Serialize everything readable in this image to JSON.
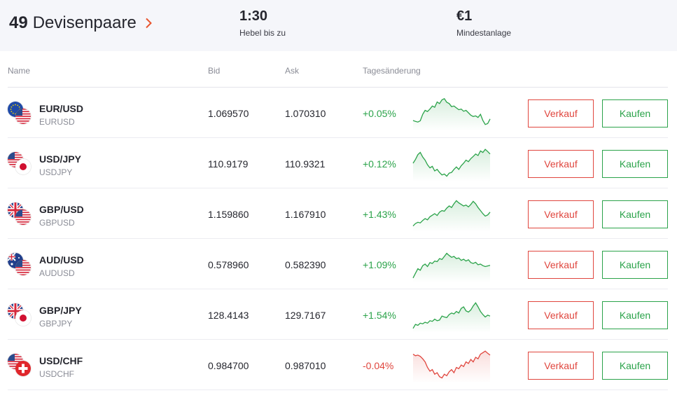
{
  "header": {
    "pairs_count": "49",
    "pairs_title": "Devisenpaare",
    "leverage_value": "1:30",
    "leverage_label": "Hebel bis zu",
    "min_deposit_value": "€1",
    "min_deposit_label": "Mindestanlage"
  },
  "columns": {
    "name": "Name",
    "bid": "Bid",
    "ask": "Ask",
    "change": "Tagesänderung"
  },
  "buttons": {
    "sell": "Verkauf",
    "buy": "Kaufen"
  },
  "colors": {
    "up": "#2ba34a",
    "down": "#e0463e",
    "accent": "#e8562f"
  },
  "rows": [
    {
      "pair": "EUR/USD",
      "symbol": "EURUSD",
      "bid": "1.069570",
      "ask": "1.070310",
      "change": "+0.05%",
      "direction": "up",
      "flags": [
        "eu-flag-icon",
        "us-flag-icon"
      ],
      "spark": [
        0.25,
        0.22,
        0.2,
        0.24,
        0.45,
        0.58,
        0.54,
        0.62,
        0.72,
        0.68,
        0.85,
        0.8,
        0.92,
        0.96,
        0.84,
        0.8,
        0.7,
        0.72,
        0.66,
        0.6,
        0.62,
        0.55,
        0.58,
        0.5,
        0.42,
        0.38,
        0.4,
        0.35,
        0.45,
        0.25,
        0.12,
        0.15,
        0.3
      ]
    },
    {
      "pair": "USD/JPY",
      "symbol": "USDJPY",
      "bid": "110.9179",
      "ask": "110.9321",
      "change": "+0.12%",
      "direction": "up",
      "flags": [
        "us-flag-icon",
        "jp-flag-icon"
      ],
      "spark": [
        0.5,
        0.62,
        0.78,
        0.85,
        0.7,
        0.6,
        0.45,
        0.35,
        0.4,
        0.25,
        0.3,
        0.2,
        0.12,
        0.15,
        0.08,
        0.18,
        0.2,
        0.3,
        0.38,
        0.3,
        0.42,
        0.5,
        0.6,
        0.55,
        0.65,
        0.72,
        0.8,
        0.75,
        0.9,
        0.85,
        0.95,
        0.88,
        0.8
      ]
    },
    {
      "pair": "GBP/USD",
      "symbol": "GBPUSD",
      "bid": "1.159860",
      "ask": "1.167910",
      "change": "+1.43%",
      "direction": "up",
      "flags": [
        "gb-flag-icon",
        "us-flag-icon"
      ],
      "spark": [
        0.1,
        0.18,
        0.22,
        0.2,
        0.28,
        0.34,
        0.3,
        0.4,
        0.45,
        0.5,
        0.44,
        0.55,
        0.6,
        0.58,
        0.68,
        0.75,
        0.7,
        0.82,
        0.92,
        0.85,
        0.8,
        0.75,
        0.78,
        0.72,
        0.8,
        0.9,
        0.82,
        0.7,
        0.6,
        0.5,
        0.42,
        0.46,
        0.55
      ]
    },
    {
      "pair": "AUD/USD",
      "symbol": "AUDUSD",
      "bid": "0.578960",
      "ask": "0.582390",
      "change": "+1.09%",
      "direction": "up",
      "flags": [
        "au-flag-icon",
        "us-flag-icon"
      ],
      "spark": [
        0.05,
        0.2,
        0.35,
        0.3,
        0.45,
        0.5,
        0.42,
        0.55,
        0.52,
        0.6,
        0.58,
        0.68,
        0.65,
        0.75,
        0.85,
        0.78,
        0.72,
        0.75,
        0.68,
        0.7,
        0.62,
        0.66,
        0.6,
        0.64,
        0.55,
        0.52,
        0.56,
        0.48,
        0.5,
        0.45,
        0.42,
        0.44,
        0.46
      ]
    },
    {
      "pair": "GBP/JPY",
      "symbol": "GBPJPY",
      "bid": "128.4143",
      "ask": "129.7167",
      "change": "+1.54%",
      "direction": "up",
      "flags": [
        "gb-flag-icon",
        "jp-flag-icon"
      ],
      "spark": [
        0.05,
        0.18,
        0.15,
        0.22,
        0.2,
        0.25,
        0.22,
        0.3,
        0.28,
        0.35,
        0.3,
        0.32,
        0.45,
        0.42,
        0.4,
        0.5,
        0.55,
        0.52,
        0.6,
        0.55,
        0.7,
        0.75,
        0.62,
        0.58,
        0.65,
        0.78,
        0.88,
        0.75,
        0.6,
        0.5,
        0.42,
        0.48,
        0.45
      ]
    },
    {
      "pair": "USD/CHF",
      "symbol": "USDCHF",
      "bid": "0.984700",
      "ask": "0.987010",
      "change": "-0.04%",
      "direction": "down",
      "flags": [
        "us-flag-icon",
        "ch-flag-icon"
      ],
      "spark": [
        0.85,
        0.8,
        0.82,
        0.78,
        0.7,
        0.6,
        0.42,
        0.3,
        0.35,
        0.2,
        0.25,
        0.12,
        0.08,
        0.2,
        0.15,
        0.28,
        0.35,
        0.25,
        0.42,
        0.38,
        0.5,
        0.45,
        0.6,
        0.55,
        0.68,
        0.6,
        0.75,
        0.7,
        0.85,
        0.9,
        0.95,
        0.88,
        0.82
      ]
    }
  ]
}
